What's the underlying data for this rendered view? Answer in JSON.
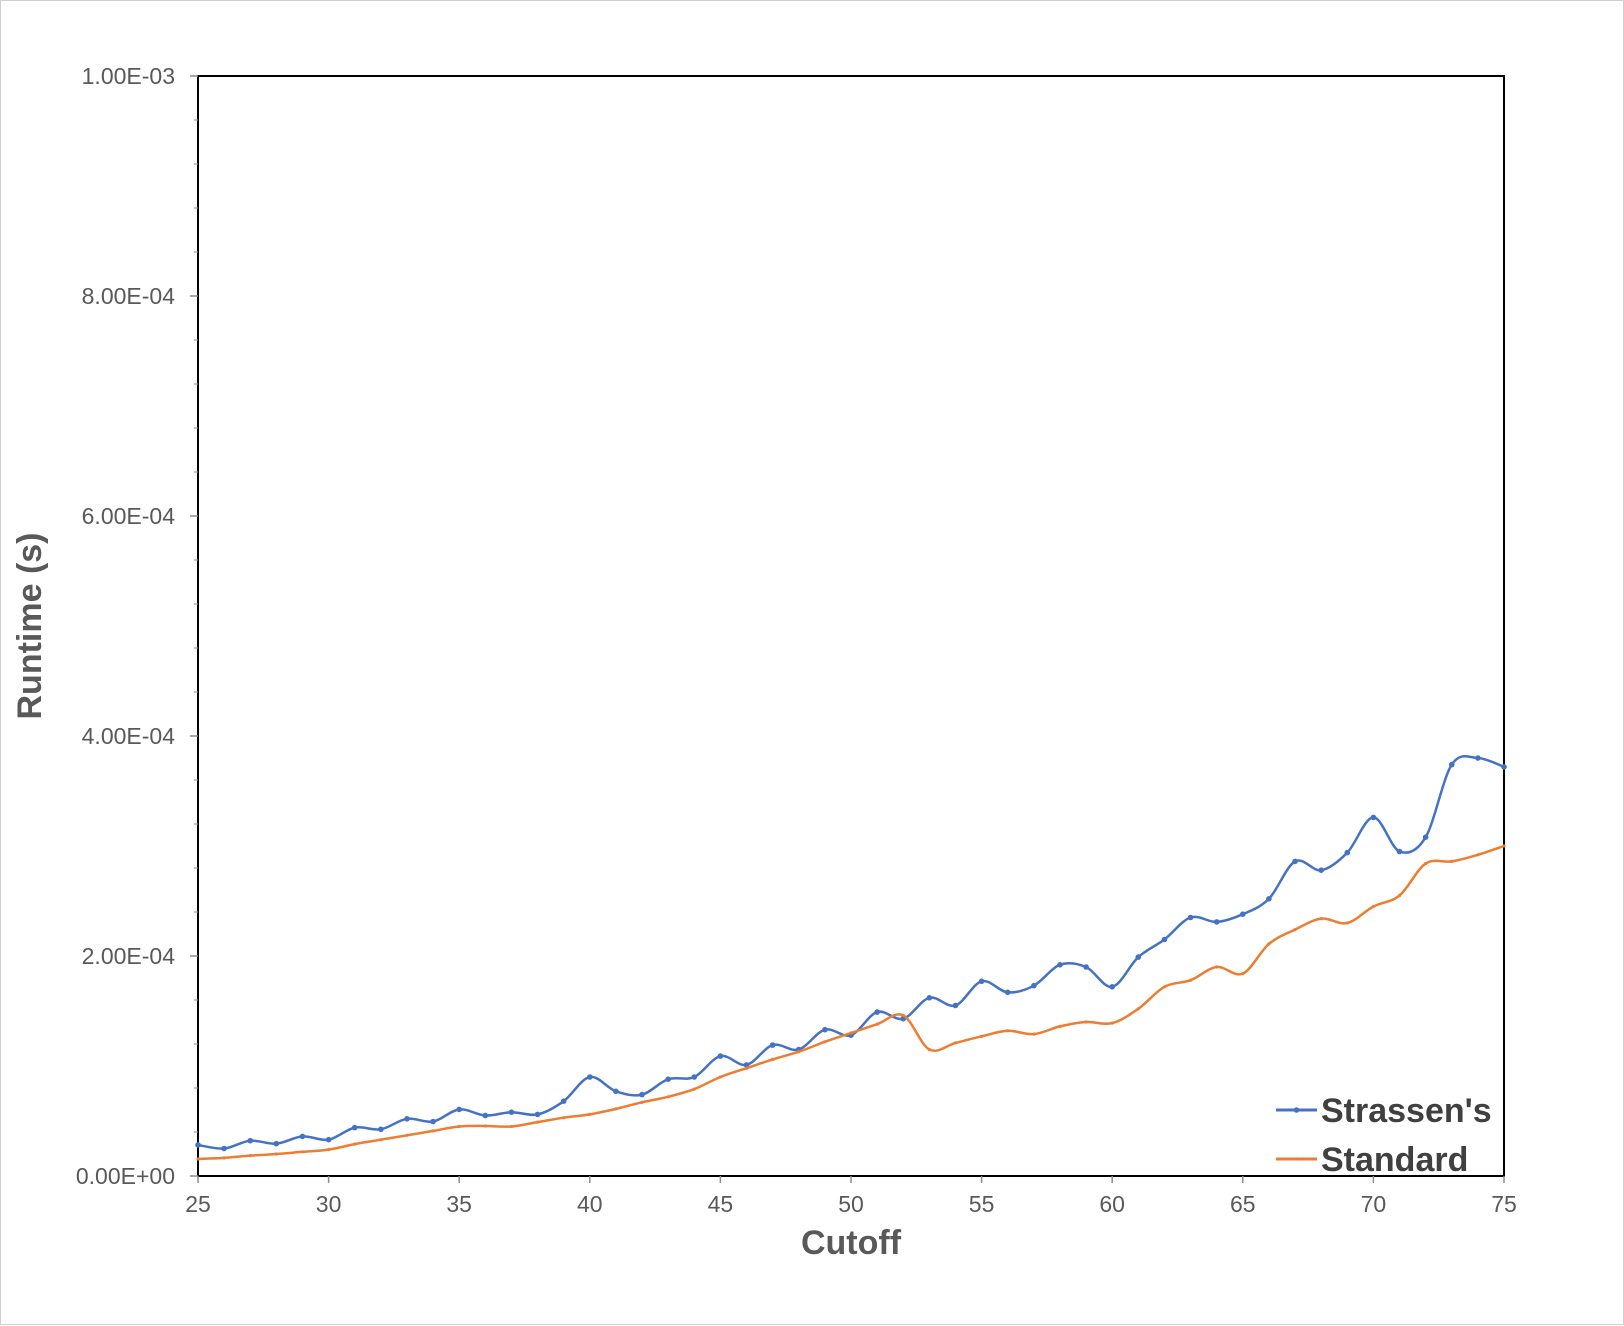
{
  "chart_data": {
    "type": "line",
    "xlabel": "Cutoff",
    "ylabel": "Runtime (s)",
    "xlim": [
      25,
      75
    ],
    "ylim": [
      0,
      0.001
    ],
    "x_ticks": [
      25,
      30,
      35,
      40,
      45,
      50,
      55,
      60,
      65,
      70,
      75
    ],
    "x_tick_labels": [
      "25",
      "30",
      "35",
      "40",
      "45",
      "50",
      "55",
      "60",
      "65",
      "70",
      "75"
    ],
    "y_ticks": [
      0,
      0.0002,
      0.0004,
      0.0006,
      0.0008,
      0.001
    ],
    "y_tick_labels": [
      "0.00E+00",
      "2.00E-04",
      "4.00E-04",
      "6.00E-04",
      "8.00E-04",
      "1.00E-03"
    ],
    "grid": false,
    "legend_position": "bottom-right",
    "x": [
      25,
      26,
      27,
      28,
      29,
      30,
      31,
      32,
      33,
      34,
      35,
      36,
      37,
      38,
      39,
      40,
      41,
      42,
      43,
      44,
      45,
      46,
      47,
      48,
      49,
      50,
      51,
      52,
      53,
      54,
      55,
      56,
      57,
      58,
      59,
      60,
      61,
      62,
      63,
      64,
      65,
      66,
      67,
      68,
      69,
      70,
      71,
      72,
      73,
      74,
      75
    ],
    "series": [
      {
        "name": "Strassen's",
        "color": "#4472C4",
        "values": [
          2.82e-05,
          2.5e-05,
          3.21e-05,
          2.94e-05,
          3.6e-05,
          3.3e-05,
          4.4e-05,
          4.25e-05,
          5.2e-05,
          4.95e-05,
          6.05e-05,
          5.5e-05,
          5.8e-05,
          5.6e-05,
          6.8e-05,
          9e-05,
          7.7e-05,
          7.4e-05,
          8.8e-05,
          9e-05,
          0.000109,
          0.000101,
          0.000119,
          0.000115,
          0.000133,
          0.000128,
          0.000149,
          0.000143,
          0.000162,
          0.000155,
          0.000177,
          0.000167,
          0.000173,
          0.000192,
          0.00019,
          0.000172,
          0.000199,
          0.000215,
          0.000235,
          0.000231,
          0.000238,
          0.000252,
          0.000286,
          0.000278,
          0.000294,
          0.000326,
          0.000295,
          0.000308,
          0.000374,
          0.00038,
          0.000372
        ]
      },
      {
        "name": "Standard",
        "color": "#ED7D31",
        "values": [
          1.55e-05,
          1.65e-05,
          1.85e-05,
          2e-05,
          2.2e-05,
          2.4e-05,
          2.9e-05,
          3.3e-05,
          3.7e-05,
          4.1e-05,
          4.5e-05,
          4.55e-05,
          4.5e-05,
          4.9e-05,
          5.3e-05,
          5.6e-05,
          6.1e-05,
          6.7e-05,
          7.2e-05,
          7.9e-05,
          9e-05,
          9.8e-05,
          0.000106,
          0.000113,
          0.000122,
          0.00013,
          0.000138,
          0.000146,
          0.000115,
          0.000121,
          0.000127,
          0.000132,
          0.000129,
          0.000136,
          0.00014,
          0.000139,
          0.000152,
          0.000172,
          0.000178,
          0.00019,
          0.000184,
          0.000211,
          0.000224,
          0.000234,
          0.00023,
          0.000245,
          0.000255,
          0.000284,
          0.000286,
          0.000292,
          0.0003
        ]
      }
    ]
  }
}
